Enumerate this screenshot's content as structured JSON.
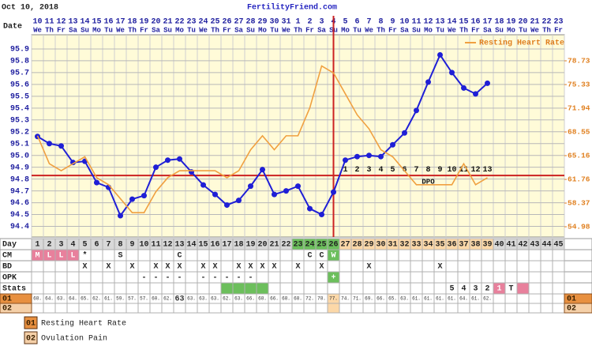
{
  "chart_data": {
    "type": "line",
    "title": "FertilityFriend.com",
    "subtitle": "Oct 10, 2018",
    "date_label": "Date",
    "categories": [
      "10",
      "11",
      "12",
      "13",
      "14",
      "15",
      "16",
      "17",
      "18",
      "19",
      "20",
      "21",
      "22",
      "23",
      "24",
      "25",
      "26",
      "27",
      "28",
      "29",
      "30",
      "31",
      "1",
      "2",
      "3",
      "4",
      "5",
      "6",
      "7",
      "8",
      "9",
      "10",
      "11",
      "12",
      "13",
      "14",
      "15",
      "16",
      "17",
      "18",
      "19",
      "20",
      "21",
      "22",
      "23"
    ],
    "weekdays": [
      "We",
      "Th",
      "Fr",
      "Sa",
      "Su",
      "Mo",
      "Tu",
      "We",
      "Th",
      "Fr",
      "Sa",
      "Su",
      "Mo",
      "Tu",
      "We",
      "Th",
      "Fr",
      "Sa",
      "Su",
      "Mo",
      "Tu",
      "We",
      "Th",
      "Fr",
      "Sa",
      "Su",
      "Mo",
      "Tu",
      "We",
      "Th",
      "Fr",
      "Sa",
      "Su",
      "Mo",
      "Tu",
      "We",
      "Th",
      "Fr",
      "Sa",
      "Su",
      "Mo",
      "Tu",
      "We",
      "Th",
      "Fr"
    ],
    "series": [
      {
        "color": "#1f1fd6",
        "values": [
          95.16,
          95.1,
          95.08,
          94.94,
          94.95,
          94.77,
          94.73,
          94.49,
          94.63,
          94.66,
          94.9,
          94.96,
          94.97,
          94.86,
          94.75,
          94.67,
          94.58,
          94.62,
          94.74,
          94.88,
          94.67,
          94.7,
          94.74,
          94.55,
          94.5,
          94.69,
          94.96,
          94.99,
          95.0,
          94.99,
          95.09,
          95.19,
          95.38,
          95.62,
          95.85,
          95.7,
          95.57,
          95.52,
          95.61,
          null,
          null,
          null,
          null,
          null,
          null
        ]
      },
      {
        "name": "Resting Heart Rate",
        "axis": "y2",
        "color": "#f0a040",
        "values": [
          68,
          64,
          63,
          64,
          65,
          62,
          61,
          59,
          57,
          57,
          60,
          62,
          63,
          63,
          63,
          63,
          62,
          63,
          66,
          68,
          66,
          68,
          68,
          72,
          78,
          77,
          74,
          71,
          69,
          66,
          65,
          63,
          61,
          61,
          61,
          61,
          64,
          61,
          62,
          null,
          null,
          null,
          null,
          null,
          null
        ],
        "value_labels": [
          "68.",
          "64.",
          "63.",
          "64.",
          "65.",
          "62.",
          "61.",
          "59.",
          "57.",
          "57.",
          "60.",
          "62.",
          "63",
          "63.",
          "63.",
          "63.",
          "62.",
          "63.",
          "66.",
          "68.",
          "66.",
          "68.",
          "68.",
          "72.",
          "78.",
          "77.",
          "74.",
          "71.",
          "69.",
          "66.",
          "65.",
          "63.",
          "61.",
          "61.",
          "61.",
          "61.",
          "64.",
          "61.",
          "62.",
          null,
          null,
          null,
          null,
          null,
          null
        ]
      }
    ],
    "ylim": [
      94.31,
      96.02
    ],
    "yticks": [
      94.4,
      94.5,
      94.6,
      94.7,
      94.8,
      94.9,
      {
        "value": 95,
        "label": "95.0"
      },
      95.1,
      95.2,
      95.3,
      95.4,
      95.5,
      95.6,
      95.7,
      95.8,
      95.9
    ],
    "y2lim": [
      53.51,
      82.46
    ],
    "y2ticks": [
      54.98,
      58.37,
      61.76,
      65.16,
      68.55,
      71.94,
      75.33,
      78.73
    ],
    "grid": true,
    "coverline": 94.83,
    "ovulation_day": 26,
    "dpo_label": "DPO",
    "dpo": [
      null,
      null,
      null,
      null,
      null,
      null,
      null,
      null,
      null,
      null,
      null,
      null,
      null,
      null,
      null,
      null,
      null,
      null,
      null,
      null,
      null,
      null,
      null,
      null,
      null,
      null,
      1,
      2,
      3,
      4,
      5,
      6,
      7,
      8,
      9,
      10,
      11,
      12,
      13,
      null,
      null,
      null,
      null,
      null,
      null
    ],
    "legend": "upper right",
    "row_labels": {
      "day": "Day",
      "cm": "CM",
      "bd": "BD",
      "opk": "OPK",
      "stats": "Stats"
    },
    "days": [
      1,
      2,
      3,
      4,
      5,
      6,
      7,
      8,
      9,
      10,
      11,
      12,
      13,
      14,
      15,
      16,
      17,
      18,
      19,
      20,
      21,
      22,
      23,
      24,
      25,
      26,
      27,
      28,
      29,
      30,
      31,
      32,
      33,
      34,
      35,
      36,
      37,
      38,
      39,
      40,
      41,
      42,
      43,
      44,
      45
    ],
    "cm": [
      "M",
      "L",
      "L",
      "L",
      "*",
      null,
      null,
      "S",
      null,
      null,
      null,
      null,
      "C",
      null,
      null,
      null,
      null,
      null,
      null,
      null,
      null,
      null,
      null,
      "C",
      "C",
      "W",
      null,
      null,
      null,
      null,
      null,
      null,
      null,
      null,
      null,
      null,
      null,
      null,
      null,
      null,
      null,
      null,
      null,
      null,
      null
    ],
    "bd": [
      null,
      null,
      null,
      null,
      "X",
      null,
      "X",
      null,
      "X",
      null,
      "X",
      "X",
      "X",
      null,
      "X",
      "X",
      null,
      "X",
      "X",
      "X",
      "X",
      null,
      "X",
      null,
      "X",
      null,
      null,
      null,
      "X",
      null,
      null,
      null,
      null,
      null,
      "X",
      null,
      null,
      null,
      null,
      null,
      null,
      null,
      null,
      null,
      null
    ],
    "opk": [
      null,
      null,
      null,
      null,
      null,
      null,
      null,
      null,
      null,
      "-",
      "-",
      "-",
      "-",
      null,
      "-",
      "-",
      "-",
      "-",
      "-",
      null,
      null,
      null,
      null,
      null,
      null,
      "+",
      null,
      null,
      null,
      null,
      null,
      null,
      null,
      null,
      null,
      null,
      null,
      null,
      null,
      null,
      null,
      null,
      null,
      null,
      null
    ],
    "stats": [
      null,
      null,
      null,
      null,
      null,
      null,
      null,
      null,
      null,
      null,
      null,
      null,
      null,
      null,
      null,
      null,
      null,
      null,
      null,
      null,
      null,
      null,
      null,
      null,
      null,
      null,
      null,
      null,
      null,
      null,
      null,
      null,
      null,
      null,
      null,
      5,
      4,
      3,
      2,
      1,
      "T",
      null,
      null,
      null,
      null
    ],
    "custom_rows": [
      {
        "code": "01",
        "label": "Resting Heart Rate"
      },
      {
        "code": "02",
        "label": "Ovulation Pain"
      }
    ],
    "highlights": {
      "day": [
        [
          0,
          21,
          "#d9d9d9"
        ],
        [
          22,
          25,
          "#6cbf5c"
        ],
        [
          26,
          38,
          "#fcd8a8"
        ],
        [
          39,
          44,
          "#d9d9d9"
        ]
      ],
      "cm": [
        [
          0,
          3,
          "#e8809c"
        ],
        [
          25,
          25,
          "#6cbf5c"
        ]
      ],
      "opk": [
        [
          25,
          25,
          "#6cbf5c"
        ]
      ],
      "stats": [
        [
          16,
          19,
          "#6cbf5c"
        ],
        [
          39,
          39,
          "#e8809c"
        ],
        [
          41,
          41,
          "#e8809c"
        ]
      ],
      "r1": [
        [
          25,
          25,
          "#fcd8a8"
        ]
      ],
      "r2": [
        [
          25,
          25,
          "#fcd8a8"
        ]
      ]
    }
  }
}
